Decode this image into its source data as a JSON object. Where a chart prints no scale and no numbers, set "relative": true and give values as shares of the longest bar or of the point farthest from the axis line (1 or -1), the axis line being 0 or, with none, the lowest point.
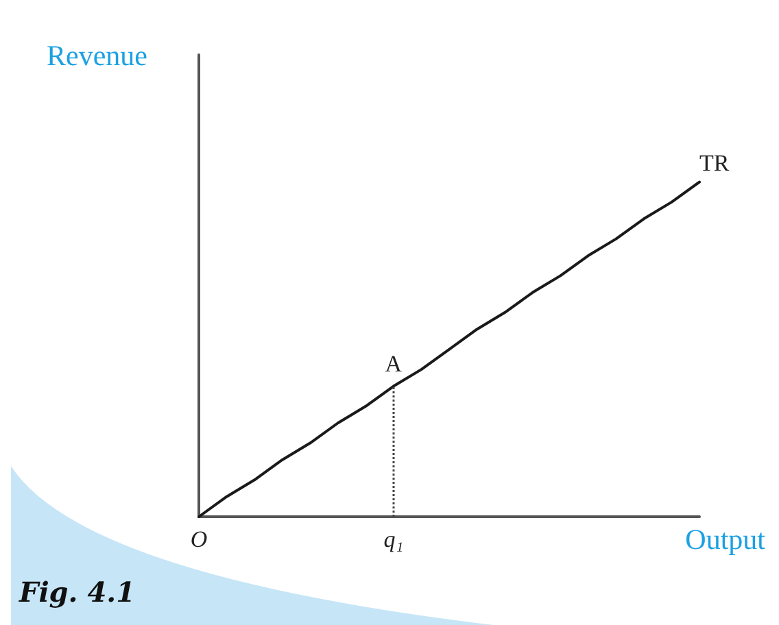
{
  "chart_data": {
    "type": "line",
    "xlabel": "Output",
    "ylabel": "Revenue",
    "relative": true,
    "categories": [
      "O",
      null,
      null,
      null,
      null,
      null,
      null,
      "q₁",
      null,
      null,
      null,
      null,
      null,
      null,
      null,
      null,
      null,
      null,
      null
    ],
    "series": [
      {
        "name": "TR",
        "color": "#1a1a1a",
        "values": [
          0,
          0.06,
          0.11,
          0.17,
          0.22,
          0.28,
          0.33,
          0.39,
          0.44,
          0.5,
          0.56,
          0.61,
          0.67,
          0.72,
          0.78,
          0.83,
          0.89,
          0.94,
          1
        ]
      }
    ],
    "annotations": [
      {
        "text": "A",
        "x": "q₁",
        "y": 0.39
      },
      "Fig. 4.1"
    ],
    "marker": "none",
    "line_style": "solid",
    "grid": false,
    "legend": false
  }
}
